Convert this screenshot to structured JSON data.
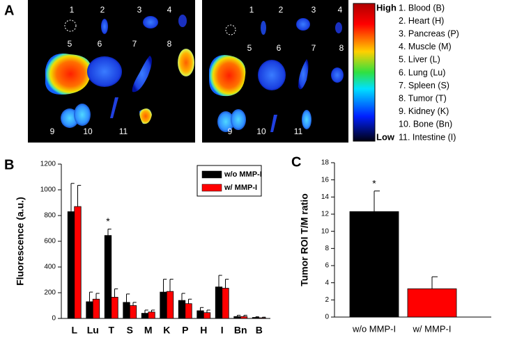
{
  "panel_labels": [
    "A",
    "B",
    "C"
  ],
  "panel_a": {
    "images": [
      {
        "labels": [
          "1",
          "2",
          "3",
          "4",
          "5",
          "6",
          "7",
          "8",
          "9",
          "10",
          "11"
        ]
      },
      {
        "labels": [
          "1",
          "2",
          "3",
          "4",
          "5",
          "6",
          "7",
          "8",
          "9",
          "10",
          "11"
        ]
      }
    ],
    "colorbar": {
      "high": "High",
      "low": "Low"
    },
    "legend": [
      "1.  Blood (B)",
      "2.  Heart (H)",
      "3.  Pancreas (P)",
      "4.  Muscle (M)",
      "5.  Liver (L)",
      "6.  Lung (Lu)",
      "7.  Spleen (S)",
      "8.  Tumor (T)",
      "9.  Kidney (K)",
      "10. Bone (Bn)",
      "11. Intestine (I)"
    ]
  },
  "chart_data": [
    {
      "type": "bar",
      "y_label": "Fluorescence (a.u.)",
      "categories": [
        "L",
        "Lu",
        "T",
        "S",
        "M",
        "K",
        "P",
        "H",
        "I",
        "Bn",
        "B"
      ],
      "series": [
        {
          "name": "w/o MMP-I",
          "color": "#000000",
          "values": [
            830,
            130,
            645,
            125,
            40,
            205,
            140,
            60,
            245,
            15,
            8
          ],
          "errors": [
            220,
            75,
            50,
            65,
            25,
            100,
            55,
            25,
            90,
            10,
            5
          ]
        },
        {
          "name": "w/ MMP-I",
          "color": "#ff0000",
          "values": [
            870,
            150,
            165,
            100,
            50,
            210,
            115,
            45,
            235,
            15,
            5
          ],
          "errors": [
            165,
            45,
            65,
            25,
            15,
            95,
            35,
            20,
            70,
            10,
            5
          ]
        }
      ],
      "ylim": [
        0,
        1200
      ],
      "yticks": [
        0,
        200,
        400,
        600,
        800,
        1000,
        1200
      ],
      "annotations": [
        {
          "text": "*",
          "category": "T"
        }
      ],
      "legend": "upper right"
    },
    {
      "type": "bar",
      "y_label": "Tumor ROI T/M ratio",
      "categories": [
        "w/o MMP-I",
        "w/ MMP-I"
      ],
      "values": [
        12.3,
        3.3
      ],
      "errors": [
        2.4,
        1.4
      ],
      "colors": [
        "#000000",
        "#ff0000"
      ],
      "ylim": [
        0,
        18
      ],
      "yticks": [
        0,
        2,
        4,
        6,
        8,
        10,
        12,
        14,
        16,
        18
      ],
      "annotations": [
        {
          "text": "*",
          "category": "w/o MMP-I"
        }
      ]
    }
  ]
}
